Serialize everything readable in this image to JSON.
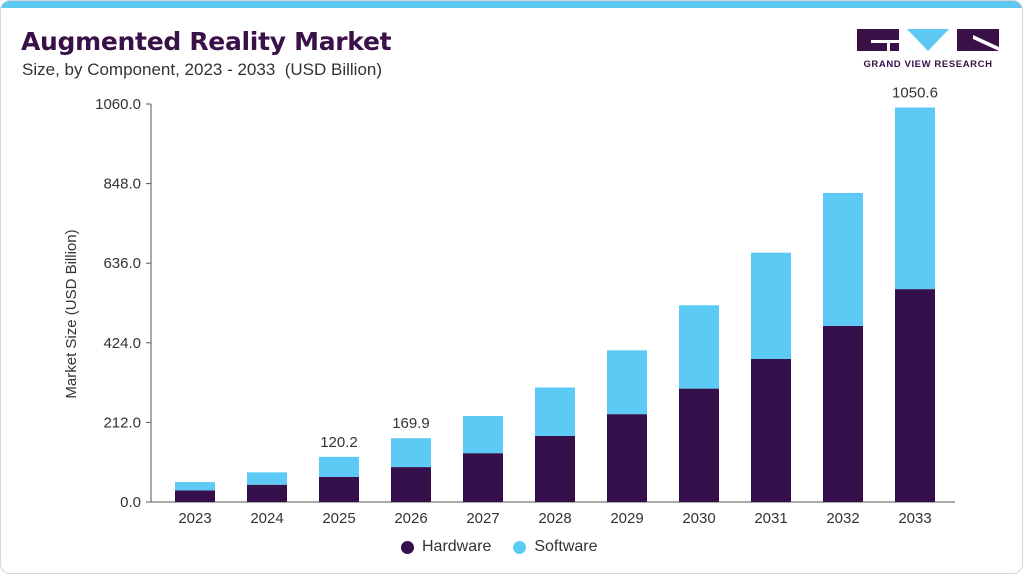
{
  "header": {
    "title": "Augmented Reality Market",
    "subtitle": "Size, by Component, 2023 - 2033  (USD Billion)"
  },
  "logo": {
    "text": "GRAND VIEW RESEARCH"
  },
  "colors": {
    "hardware": "#35104a",
    "software": "#5ccaf5",
    "accent_bar": "#5ec8f2"
  },
  "chart_data": {
    "type": "bar",
    "stacked": true,
    "categories": [
      "2023",
      "2024",
      "2025",
      "2026",
      "2027",
      "2028",
      "2029",
      "2030",
      "2031",
      "2032",
      "2033"
    ],
    "series": [
      {
        "name": "Hardware",
        "values": [
          31,
          46,
          67,
          93,
          130,
          176,
          234,
          302,
          381,
          469,
          567
        ]
      },
      {
        "name": "Software",
        "values": [
          22,
          33,
          53.2,
          76.9,
          99,
          129,
          170,
          222,
          283,
          354,
          483.6
        ]
      }
    ],
    "totals_labeled": {
      "2025": "120.2",
      "2026": "169.9",
      "2033": "1050.6"
    },
    "ylabel": "Market Size (USD Billion)",
    "yticks": [
      "0.0",
      "212.0",
      "424.0",
      "636.0",
      "848.0",
      "1060.0"
    ],
    "ylim": [
      0,
      1060
    ],
    "grid": false,
    "legend_position": "bottom-center"
  }
}
